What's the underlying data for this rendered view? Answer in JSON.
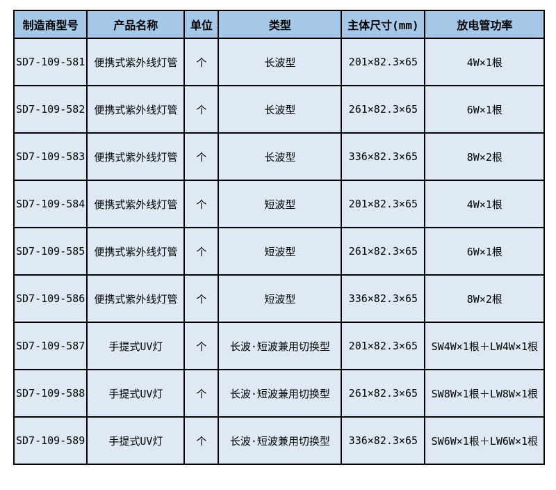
{
  "table": {
    "headers": [
      "制造商型号",
      "产品名称",
      "单位",
      "类型",
      "主体尺寸(mm)",
      "放电管功率"
    ],
    "rows": [
      [
        "SD7-109-581",
        "便携式紫外线灯管",
        "个",
        "长波型",
        "201×82.3×65",
        "4W×1根"
      ],
      [
        "SD7-109-582",
        "便携式紫外线灯管",
        "个",
        "长波型",
        "261×82.3×65",
        "6W×1根"
      ],
      [
        "SD7-109-583",
        "便携式紫外线灯管",
        "个",
        "长波型",
        "336×82.3×65",
        "8W×2根"
      ],
      [
        "SD7-109-584",
        "便携式紫外线灯管",
        "个",
        "短波型",
        "201×82.3×65",
        "4W×1根"
      ],
      [
        "SD7-109-585",
        "便携式紫外线灯管",
        "个",
        "短波型",
        "261×82.3×65",
        "6W×1根"
      ],
      [
        "SD7-109-586",
        "便携式紫外线灯管",
        "个",
        "短波型",
        "336×82.3×65",
        "8W×2根"
      ],
      [
        "SD7-109-587",
        "手提式UV灯",
        "个",
        "长波·短波兼用切换型",
        "201×82.3×65",
        "SW4W×1根＋LW4W×1根"
      ],
      [
        "SD7-109-588",
        "手提式UV灯",
        "个",
        "长波·短波兼用切换型",
        "261×82.3×65",
        "SW8W×1根＋LW8W×1根"
      ],
      [
        "SD7-109-589",
        "手提式UV灯",
        "个",
        "长波·短波兼用切换型",
        "336×82.3×65",
        "SW6W×1根＋LW6W×1根"
      ]
    ]
  },
  "colors": {
    "header_bg": "#A5C8E9",
    "row_bg": "#DEE9F5",
    "border": "#000000",
    "text": "#000000"
  }
}
